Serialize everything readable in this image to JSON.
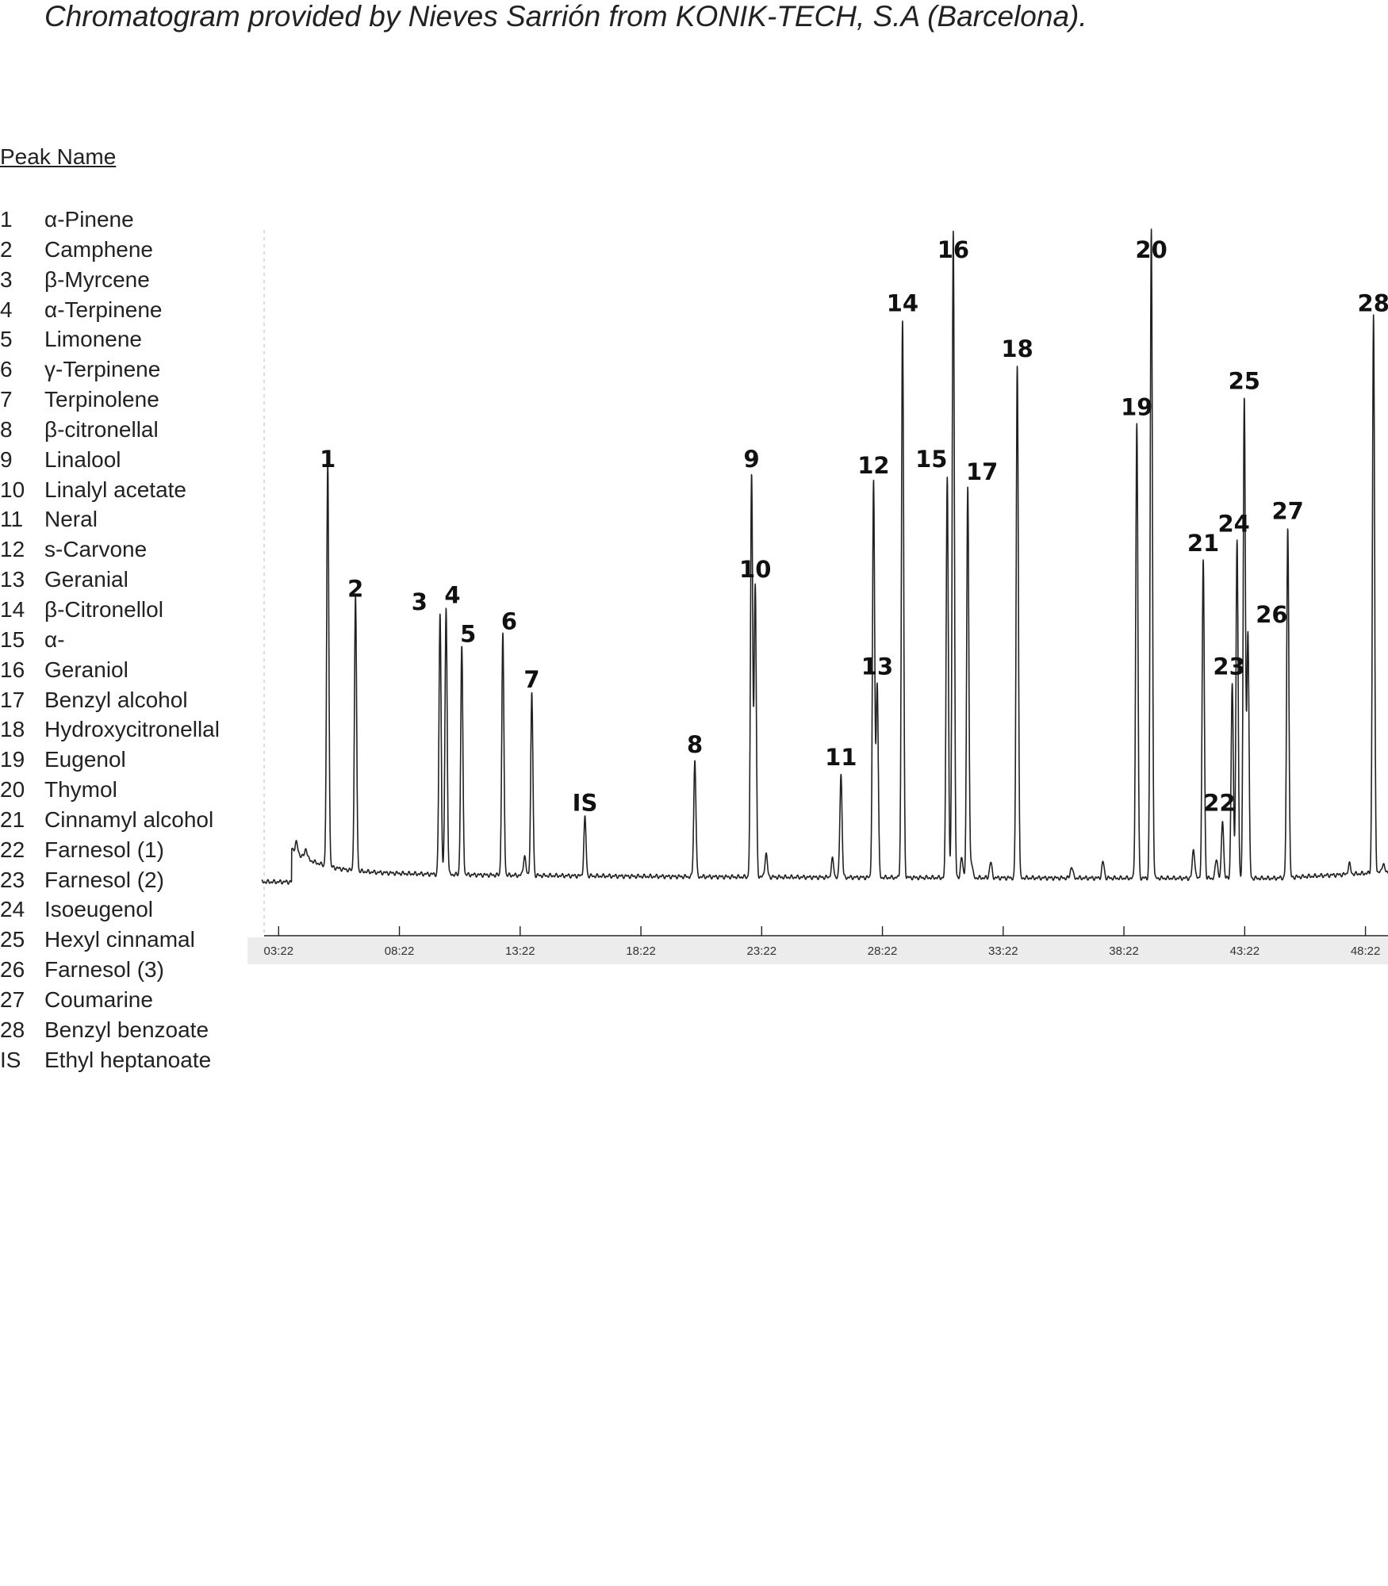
{
  "caption": "Chromatogram provided by Nieves Sarrión from  KONIK-TECH, S.A (Barcelona).",
  "legend": {
    "title": "Peak Name",
    "items": [
      {
        "num": "1",
        "name": "α-Pinene"
      },
      {
        "num": "2",
        "name": "Camphene"
      },
      {
        "num": "3",
        "name": "β-Myrcene"
      },
      {
        "num": "4",
        "name": "α-Terpinene"
      },
      {
        "num": "5",
        "name": "Limonene"
      },
      {
        "num": "6",
        "name": "γ-Terpinene"
      },
      {
        "num": "7",
        "name": "Terpinolene"
      },
      {
        "num": "8",
        "name": "β-citronellal"
      },
      {
        "num": "9",
        "name": "Linalool"
      },
      {
        "num": "10",
        "name": "Linalyl acetate"
      },
      {
        "num": "11",
        "name": "Neral"
      },
      {
        "num": "12",
        "name": "s-Carvone"
      },
      {
        "num": "13",
        "name": "Geranial"
      },
      {
        "num": "14",
        "name": "β-Citronellol"
      },
      {
        "num": "15",
        "name": "α-"
      },
      {
        "num": "16",
        "name": "Geraniol"
      },
      {
        "num": "17",
        "name": "Benzyl alcohol"
      },
      {
        "num": "18",
        "name": "Hydroxycitronellal"
      },
      {
        "num": "19",
        "name": "Eugenol"
      },
      {
        "num": "20",
        "name": "Thymol"
      },
      {
        "num": "21",
        "name": "Cinnamyl alcohol"
      },
      {
        "num": "22",
        "name": "Farnesol (1)"
      },
      {
        "num": "23",
        "name": "Farnesol (2)"
      },
      {
        "num": "24",
        "name": "Isoeugenol"
      },
      {
        "num": "25",
        "name": "Hexyl cinnamal"
      },
      {
        "num": "26",
        "name": "Farnesol (3)"
      },
      {
        "num": "27",
        "name": "Coumarine"
      },
      {
        "num": "28",
        "name": "Benzyl benzoate"
      },
      {
        "num": "IS",
        "name": "Ethyl heptanoate"
      }
    ]
  },
  "chart_data": {
    "type": "line",
    "title": "",
    "xlabel": "",
    "ylabel": "",
    "x_unit": "min",
    "xlim": [
      2.667,
      49.3
    ],
    "ylim": [
      0,
      100
    ],
    "grid": false,
    "x_ticks": [
      {
        "value": 3.367,
        "label": "03:22"
      },
      {
        "value": 8.367,
        "label": "08:22"
      },
      {
        "value": 13.367,
        "label": "13:22"
      },
      {
        "value": 18.367,
        "label": "18:22"
      },
      {
        "value": 23.367,
        "label": "23:22"
      },
      {
        "value": 28.367,
        "label": "28:22"
      },
      {
        "value": 33.367,
        "label": "33:22"
      },
      {
        "value": 38.367,
        "label": "38:22"
      },
      {
        "value": 43.367,
        "label": "43:22"
      },
      {
        "value": 48.367,
        "label": "48:22"
      }
    ],
    "peaks": [
      {
        "label": "1",
        "rt": 5.4,
        "height": 62
      },
      {
        "label": "2",
        "rt": 6.55,
        "height": 42
      },
      {
        "label": "3",
        "rt": 10.05,
        "height": 40
      },
      {
        "label": "4",
        "rt": 10.3,
        "height": 41
      },
      {
        "label": "5",
        "rt": 10.95,
        "height": 35
      },
      {
        "label": "6",
        "rt": 12.65,
        "height": 37
      },
      {
        "label": "7",
        "rt": 13.85,
        "height": 28
      },
      {
        "label": "IS",
        "rt": 16.05,
        "height": 9
      },
      {
        "label": "8",
        "rt": 20.6,
        "height": 18
      },
      {
        "label": "9",
        "rt": 22.95,
        "height": 62
      },
      {
        "label": "10",
        "rt": 23.1,
        "height": 45
      },
      {
        "label": "11",
        "rt": 26.65,
        "height": 16
      },
      {
        "label": "12",
        "rt": 28.0,
        "height": 61
      },
      {
        "label": "13",
        "rt": 28.15,
        "height": 30
      },
      {
        "label": "14",
        "rt": 29.2,
        "height": 86
      },
      {
        "label": "15",
        "rt": 31.05,
        "height": 62
      },
      {
        "label": "16",
        "rt": 31.3,
        "height": 100
      },
      {
        "label": "17",
        "rt": 31.9,
        "height": 60
      },
      {
        "label": "18",
        "rt": 33.95,
        "height": 79
      },
      {
        "label": "19",
        "rt": 38.9,
        "height": 70
      },
      {
        "label": "20",
        "rt": 39.5,
        "height": 100
      },
      {
        "label": "21",
        "rt": 41.65,
        "height": 49
      },
      {
        "label": "22",
        "rt": 42.45,
        "height": 9
      },
      {
        "label": "23",
        "rt": 42.85,
        "height": 30
      },
      {
        "label": "24",
        "rt": 43.05,
        "height": 52
      },
      {
        "label": "25",
        "rt": 43.35,
        "height": 74
      },
      {
        "label": "26",
        "rt": 43.5,
        "height": 38
      },
      {
        "label": "27",
        "rt": 45.15,
        "height": 54
      },
      {
        "label": "28",
        "rt": 48.7,
        "height": 86
      }
    ]
  }
}
